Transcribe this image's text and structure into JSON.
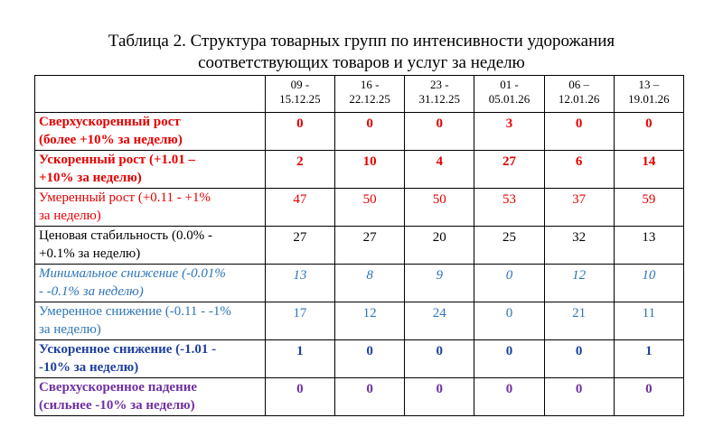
{
  "title": [
    "Таблица 2. Структура товарных групп по интенсивности удорожания",
    "соответствующих товаров и услуг за неделю"
  ],
  "table": {
    "columns": [
      [
        "09 -",
        "15.12.25"
      ],
      [
        "16 -",
        "22.12.25"
      ],
      [
        "23 -",
        "31.12.25"
      ],
      [
        "01 -",
        "05.01.26"
      ],
      [
        "06 –",
        "12.01.26"
      ],
      [
        "13 –",
        "19.01.26"
      ]
    ],
    "rows": [
      {
        "label": [
          "Сверхускоренный рост",
          "(более +10% за неделю)"
        ],
        "values": [
          0,
          0,
          0,
          3,
          0,
          0
        ]
      },
      {
        "label": [
          "Ускоренный рост (+1.01 –",
          "+10% за неделю)"
        ],
        "values": [
          2,
          10,
          4,
          27,
          6,
          14
        ]
      },
      {
        "label": [
          "Умеренный рост (+0.11 - +1%",
          "за неделю)"
        ],
        "values": [
          47,
          50,
          50,
          53,
          37,
          59
        ]
      },
      {
        "label": [
          "Ценовая стабильность (0.0% -",
          "+0.1% за неделю)"
        ],
        "values": [
          27,
          27,
          20,
          25,
          32,
          13
        ]
      },
      {
        "label": [
          "Минимальное снижение (-0.01%",
          "- -0.1% за неделю)"
        ],
        "values": [
          13,
          8,
          9,
          0,
          12,
          10
        ]
      },
      {
        "label": [
          "Умеренное снижение (-0.11 - -1%",
          "за неделю)"
        ],
        "values": [
          17,
          12,
          24,
          0,
          21,
          11
        ]
      },
      {
        "label": [
          "Ускоренное снижение (-1.01 -",
          "-10% за неделю)"
        ],
        "values": [
          1,
          0,
          0,
          0,
          0,
          1
        ]
      },
      {
        "label": [
          "Сверхускоренное падение",
          "(сильнее -10% за неделю)"
        ],
        "values": [
          0,
          0,
          0,
          0,
          0,
          0
        ]
      }
    ]
  }
}
